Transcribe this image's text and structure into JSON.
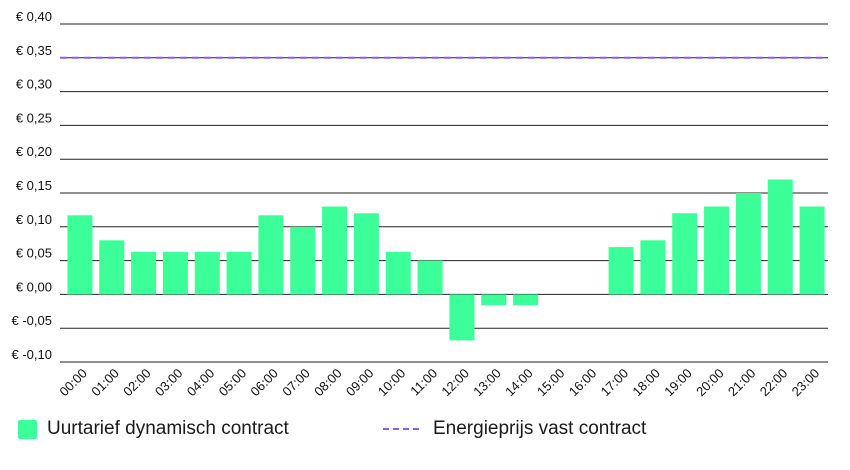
{
  "chart_data": {
    "type": "bar",
    "title": "",
    "xlabel": "",
    "ylabel": "",
    "ylim": [
      -0.1,
      0.4
    ],
    "y_ticks": [
      0.4,
      0.35,
      0.3,
      0.25,
      0.2,
      0.15,
      0.1,
      0.05,
      0.0,
      -0.05,
      -0.1
    ],
    "y_tick_labels": [
      "€ 0,40",
      "€ 0,35",
      "€ 0,30",
      "€ 0,25",
      "€ 0,20",
      "€ 0,15",
      "€ 0,10",
      "€ 0,05",
      "€ 0,00",
      "€ -0,05",
      "€ -0,10"
    ],
    "categories": [
      "00:00",
      "01:00",
      "02:00",
      "03:00",
      "04:00",
      "05:00",
      "06:00",
      "07:00",
      "08:00",
      "09:00",
      "10:00",
      "11:00",
      "12:00",
      "13:00",
      "14:00",
      "15:00",
      "16:00",
      "17:00",
      "18:00",
      "19:00",
      "20:00",
      "21:00",
      "22:00",
      "23:00"
    ],
    "series": [
      {
        "name": "Uurtarief dynamisch contract",
        "color": "#3dff9a",
        "values": [
          0.117,
          0.08,
          0.063,
          0.063,
          0.063,
          0.063,
          0.117,
          0.1,
          0.13,
          0.12,
          0.063,
          0.05,
          -0.068,
          -0.016,
          -0.016,
          0,
          0,
          0.07,
          0.08,
          0.12,
          0.13,
          0.15,
          0.17,
          0.13
        ]
      }
    ],
    "reference_lines": [
      {
        "name": "Energieprijs vast contract",
        "value": 0.35,
        "color": "#8f5cf0",
        "style": "dashed"
      }
    ],
    "grid": true,
    "legend_position": "bottom-left"
  },
  "legend": {
    "bar_label": "Uurtarief dynamisch contract",
    "line_label": "Energieprijs vast contract"
  }
}
